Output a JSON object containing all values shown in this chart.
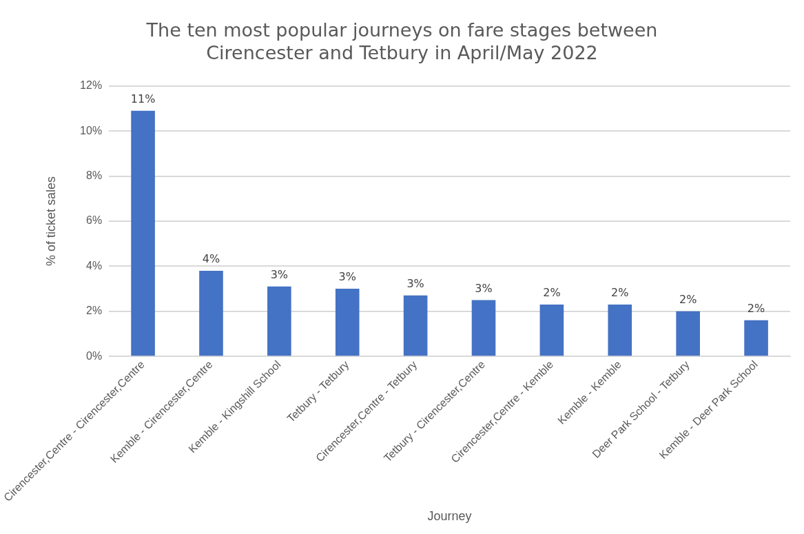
{
  "chart_data": {
    "type": "bar",
    "title": "The ten most popular journeys on fare stages between Cirencester and Tetbury in April/May 2022",
    "xlabel": "Journey",
    "ylabel": "% of ticket sales",
    "categories": [
      "Cirencester,Centre - Cirencester,Centre",
      "Kemble - Cirencester,Centre",
      "Kemble - Kingshill School",
      "Tetbury - Tetbury",
      "Cirencester,Centre - Tetbury",
      "Tetbury - Cirencester,Centre",
      "Cirencester,Centre - Kemble",
      "Kemble - Kemble",
      "Deer Park School - Tetbury",
      "Kemble - Deer Park School"
    ],
    "values": [
      10.9,
      3.8,
      3.1,
      3.0,
      2.7,
      2.5,
      2.3,
      2.3,
      2.0,
      1.6
    ],
    "value_labels": [
      "11%",
      "4%",
      "3%",
      "3%",
      "3%",
      "3%",
      "2%",
      "2%",
      "2%",
      "2%"
    ],
    "color": "#4472c4",
    "ylim": [
      0,
      12
    ],
    "yticks": [
      {
        "value": 0,
        "label": "0%"
      },
      {
        "value": 2,
        "label": "2%"
      },
      {
        "value": 4,
        "label": "4%"
      },
      {
        "value": 6,
        "label": "6%"
      },
      {
        "value": 8,
        "label": "8%"
      },
      {
        "value": 10,
        "label": "10%"
      },
      {
        "value": 12,
        "label": "12%"
      }
    ],
    "grid": "y",
    "legend": false
  }
}
